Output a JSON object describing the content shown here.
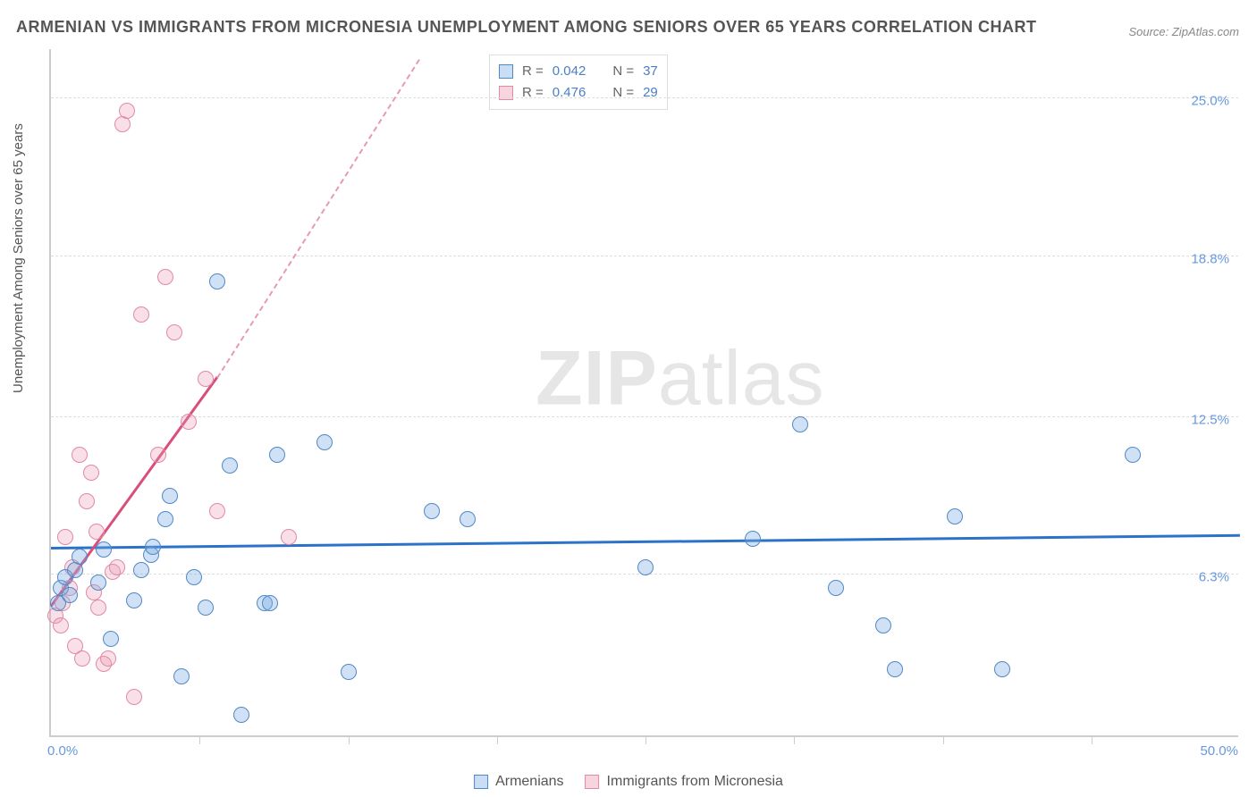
{
  "title": "ARMENIAN VS IMMIGRANTS FROM MICRONESIA UNEMPLOYMENT AMONG SENIORS OVER 65 YEARS CORRELATION CHART",
  "source": "Source: ZipAtlas.com",
  "ylabel": "Unemployment Among Seniors over 65 years",
  "watermark_left": "ZIP",
  "watermark_right": "atlas",
  "chart": {
    "type": "scatter",
    "xlim": [
      0,
      50
    ],
    "ylim": [
      0,
      27
    ],
    "x_min_label": "0.0%",
    "x_max_label": "50.0%",
    "y_gridlines": [
      6.3,
      12.5,
      18.8,
      25.0
    ],
    "y_labels": [
      "6.3%",
      "12.5%",
      "18.8%",
      "25.0%"
    ],
    "x_tick_positions": [
      6.25,
      12.5,
      18.75,
      25,
      31.25,
      37.5,
      43.75
    ],
    "background_color": "#ffffff",
    "grid_color": "#dddddd",
    "blue_color": "#5089c6",
    "pink_color": "#e08aa5",
    "series": {
      "blue": {
        "label": "Armenians",
        "R": "0.042",
        "N": "37",
        "trend": {
          "x1": 0,
          "y1": 7.3,
          "x2": 50,
          "y2": 7.8
        },
        "points": [
          [
            0.3,
            5.2
          ],
          [
            0.4,
            5.8
          ],
          [
            0.6,
            6.2
          ],
          [
            0.8,
            5.5
          ],
          [
            1.0,
            6.5
          ],
          [
            1.2,
            7.0
          ],
          [
            2.0,
            6.0
          ],
          [
            2.2,
            7.3
          ],
          [
            2.5,
            3.8
          ],
          [
            3.5,
            5.3
          ],
          [
            3.8,
            6.5
          ],
          [
            4.2,
            7.1
          ],
          [
            4.3,
            7.4
          ],
          [
            4.8,
            8.5
          ],
          [
            5.0,
            9.4
          ],
          [
            5.5,
            2.3
          ],
          [
            6.0,
            6.2
          ],
          [
            6.5,
            5.0
          ],
          [
            7.0,
            17.8
          ],
          [
            7.5,
            10.6
          ],
          [
            8.0,
            0.8
          ],
          [
            9.0,
            5.2
          ],
          [
            9.2,
            5.2
          ],
          [
            9.5,
            11.0
          ],
          [
            11.5,
            11.5
          ],
          [
            12.5,
            2.5
          ],
          [
            16.0,
            8.8
          ],
          [
            17.5,
            8.5
          ],
          [
            25.0,
            6.6
          ],
          [
            29.5,
            7.7
          ],
          [
            31.5,
            12.2
          ],
          [
            33.0,
            5.8
          ],
          [
            35.0,
            4.3
          ],
          [
            35.5,
            2.6
          ],
          [
            38.0,
            8.6
          ],
          [
            40.0,
            2.6
          ],
          [
            45.5,
            11.0
          ]
        ]
      },
      "pink": {
        "label": "Immigrants from Micronesia",
        "R": "0.476",
        "N": "29",
        "trend_solid": {
          "x1": 0,
          "y1": 5.0,
          "x2": 7.0,
          "y2": 14.0
        },
        "trend_dash": {
          "x1": 7.0,
          "y1": 14.0,
          "x2": 15.5,
          "y2": 26.5
        },
        "points": [
          [
            0.2,
            4.7
          ],
          [
            0.4,
            4.3
          ],
          [
            0.5,
            5.2
          ],
          [
            0.6,
            7.8
          ],
          [
            0.8,
            5.8
          ],
          [
            0.9,
            6.6
          ],
          [
            1.0,
            3.5
          ],
          [
            1.2,
            11.0
          ],
          [
            1.3,
            3.0
          ],
          [
            1.5,
            9.2
          ],
          [
            1.7,
            10.3
          ],
          [
            1.8,
            5.6
          ],
          [
            1.9,
            8.0
          ],
          [
            2.0,
            5.0
          ],
          [
            2.2,
            2.8
          ],
          [
            2.4,
            3.0
          ],
          [
            2.6,
            6.4
          ],
          [
            2.8,
            6.6
          ],
          [
            3.0,
            24.0
          ],
          [
            3.2,
            24.5
          ],
          [
            3.5,
            1.5
          ],
          [
            3.8,
            16.5
          ],
          [
            4.5,
            11.0
          ],
          [
            4.8,
            18.0
          ],
          [
            5.2,
            15.8
          ],
          [
            5.8,
            12.3
          ],
          [
            6.5,
            14.0
          ],
          [
            7.0,
            8.8
          ],
          [
            10.0,
            7.8
          ]
        ]
      }
    }
  },
  "legend_bottom": {
    "blue_label": "Armenians",
    "pink_label": "Immigrants from Micronesia"
  },
  "stats_labels": {
    "R": "R =",
    "N": "N ="
  }
}
